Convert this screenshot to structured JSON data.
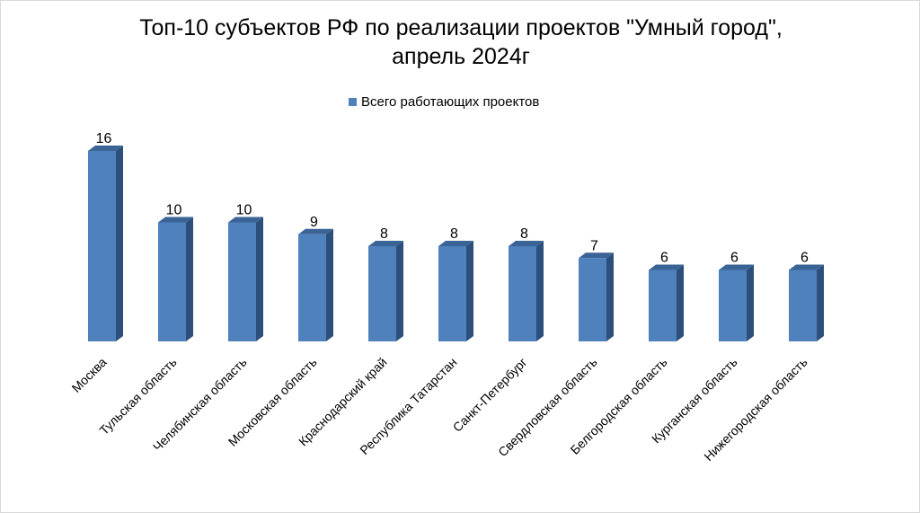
{
  "chart_data": {
    "type": "bar",
    "title_line1": "Топ-10 субъектов РФ по реализации проектов \"Умный город\",",
    "title_line2": "апрель 2024г",
    "series": [
      {
        "name": "Всего работающих проектов",
        "values": [
          16,
          10,
          10,
          9,
          8,
          8,
          8,
          7,
          6,
          6,
          6
        ]
      }
    ],
    "categories": [
      "Москва",
      "Тульская область",
      "Челябинская область",
      "Московская область",
      "Краснодарский край",
      "Республика Татарстан",
      "Санкт-Петербург",
      "Свердловская область",
      "Белгородская область",
      "Курганская область",
      "Нижегородская область"
    ],
    "ylim": [
      0,
      16
    ],
    "grid": false,
    "legend_position": "top-center",
    "colors": {
      "bar_front": "#4f81bd",
      "bar_side": "#2c4f7c",
      "bar_top": "#3b6496"
    }
  }
}
